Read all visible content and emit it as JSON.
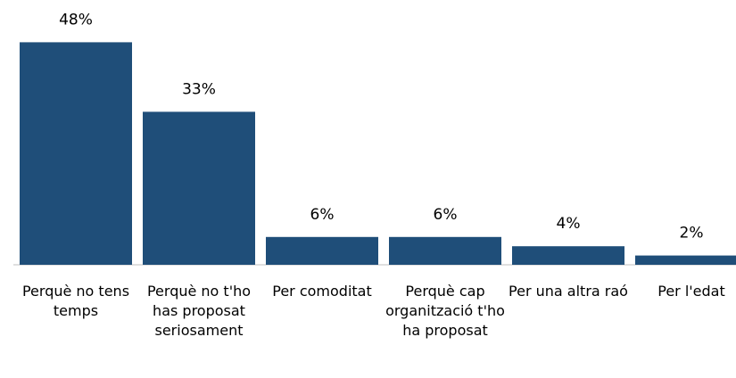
{
  "chart_data": {
    "type": "bar",
    "categories": [
      "Perquè no tens temps",
      "Perquè no t'ho has proposat seriosament",
      "Per comoditat",
      "Perquè cap organització t'ho ha proposat",
      "Per una altra raó",
      "Per l'edat"
    ],
    "values": [
      48,
      33,
      6,
      6,
      4,
      2
    ],
    "value_labels": [
      "48%",
      "33%",
      "6%",
      "6%",
      "4%",
      "2%"
    ],
    "color": "#1f4e79"
  }
}
